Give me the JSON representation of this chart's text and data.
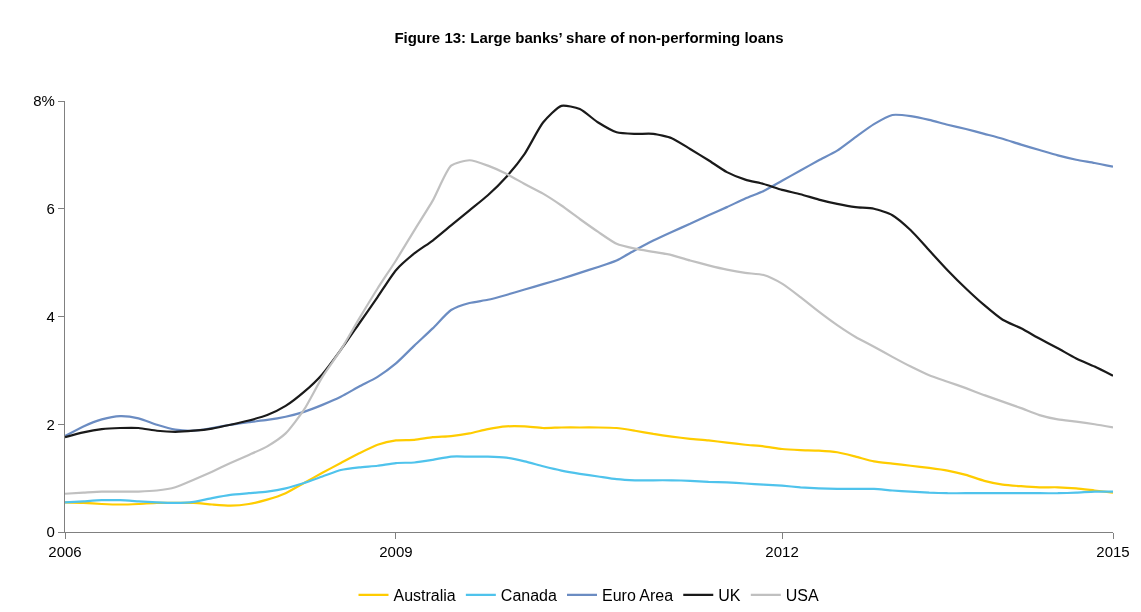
{
  "chart_data": {
    "type": "line",
    "title": "Figure 13: Large banks’ share of non-performing loans",
    "categories": [
      "2006",
      null,
      null,
      null,
      null,
      null,
      null,
      null,
      null,
      null,
      null,
      null,
      null,
      null,
      null,
      null,
      null,
      null,
      "2009",
      null,
      null,
      null,
      null,
      null,
      null,
      null,
      null,
      null,
      null,
      null,
      null,
      null,
      null,
      null,
      null,
      null,
      null,
      null,
      null,
      "2012",
      null,
      null,
      null,
      null,
      null,
      null,
      null,
      null,
      null,
      null,
      null,
      null,
      null,
      null,
      null,
      null,
      null,
      "2015"
    ],
    "series": [
      {
        "name": "Australia",
        "color": "#ffcc00",
        "values": [
          0.55,
          0.54,
          0.52,
          0.51,
          0.52,
          0.54,
          0.54,
          0.54,
          0.51,
          0.49,
          0.52,
          0.6,
          0.72,
          0.91,
          1.1,
          1.28,
          1.46,
          1.62,
          1.7,
          1.71,
          1.76,
          1.78,
          1.83,
          1.91,
          1.96,
          1.96,
          1.93,
          1.94,
          1.94,
          1.94,
          1.93,
          1.88,
          1.82,
          1.77,
          1.73,
          1.7,
          1.66,
          1.62,
          1.59,
          1.54,
          1.52,
          1.51,
          1.48,
          1.4,
          1.31,
          1.27,
          1.23,
          1.19,
          1.14,
          1.06,
          0.95,
          0.88,
          0.85,
          0.83,
          0.83,
          0.81,
          0.77,
          0.73
        ]
      },
      {
        "name": "Canada",
        "color": "#4fc3ec",
        "values": [
          0.55,
          0.57,
          0.59,
          0.59,
          0.57,
          0.55,
          0.54,
          0.56,
          0.63,
          0.69,
          0.72,
          0.75,
          0.81,
          0.91,
          1.03,
          1.15,
          1.2,
          1.23,
          1.28,
          1.29,
          1.34,
          1.4,
          1.4,
          1.4,
          1.38,
          1.31,
          1.22,
          1.14,
          1.08,
          1.03,
          0.98,
          0.96,
          0.96,
          0.96,
          0.95,
          0.93,
          0.92,
          0.9,
          0.88,
          0.86,
          0.83,
          0.81,
          0.8,
          0.8,
          0.8,
          0.77,
          0.75,
          0.73,
          0.72,
          0.72,
          0.72,
          0.72,
          0.72,
          0.72,
          0.72,
          0.73,
          0.75,
          0.75
        ]
      },
      {
        "name": "Euro Area",
        "color": "#6b8cc2",
        "values": [
          1.78,
          1.96,
          2.09,
          2.15,
          2.11,
          1.99,
          1.9,
          1.88,
          1.93,
          1.99,
          2.04,
          2.08,
          2.14,
          2.23,
          2.36,
          2.51,
          2.7,
          2.88,
          3.13,
          3.46,
          3.78,
          4.12,
          4.25,
          4.31,
          4.4,
          4.5,
          4.6,
          4.7,
          4.81,
          4.92,
          5.04,
          5.23,
          5.41,
          5.57,
          5.72,
          5.88,
          6.03,
          6.19,
          6.33,
          6.52,
          6.71,
          6.9,
          7.08,
          7.33,
          7.57,
          7.74,
          7.72,
          7.65,
          7.56,
          7.48,
          7.39,
          7.3,
          7.19,
          7.09,
          6.99,
          6.91,
          6.85,
          6.78
        ]
      },
      {
        "name": "UK",
        "color": "#1a1a1a",
        "values": [
          1.76,
          1.85,
          1.91,
          1.93,
          1.93,
          1.88,
          1.86,
          1.88,
          1.92,
          1.99,
          2.07,
          2.17,
          2.34,
          2.6,
          2.93,
          3.38,
          3.87,
          4.36,
          4.86,
          5.17,
          5.41,
          5.69,
          5.97,
          6.25,
          6.59,
          7.02,
          7.6,
          7.91,
          7.85,
          7.6,
          7.42,
          7.39,
          7.39,
          7.31,
          7.11,
          6.9,
          6.68,
          6.54,
          6.46,
          6.35,
          6.27,
          6.17,
          6.09,
          6.03,
          6.0,
          5.88,
          5.6,
          5.23,
          4.86,
          4.52,
          4.21,
          3.94,
          3.78,
          3.59,
          3.41,
          3.22,
          3.07,
          2.9
        ]
      },
      {
        "name": "USA",
        "color": "#c0c0c0",
        "values": [
          0.71,
          0.73,
          0.75,
          0.75,
          0.75,
          0.77,
          0.83,
          0.97,
          1.12,
          1.28,
          1.43,
          1.59,
          1.83,
          2.27,
          2.88,
          3.38,
          3.96,
          4.52,
          5.04,
          5.6,
          6.15,
          6.8,
          6.9,
          6.8,
          6.65,
          6.46,
          6.28,
          6.06,
          5.81,
          5.57,
          5.35,
          5.26,
          5.2,
          5.14,
          5.04,
          4.95,
          4.87,
          4.81,
          4.77,
          4.61,
          4.36,
          4.09,
          3.84,
          3.62,
          3.44,
          3.25,
          3.07,
          2.91,
          2.79,
          2.67,
          2.54,
          2.42,
          2.3,
          2.17,
          2.09,
          2.05,
          2.0,
          1.94
        ]
      }
    ],
    "ylim": [
      0,
      8
    ],
    "yticks": [
      0,
      2,
      4,
      6,
      {
        "value": 8,
        "label": "8%"
      }
    ],
    "legend": "bottom"
  }
}
